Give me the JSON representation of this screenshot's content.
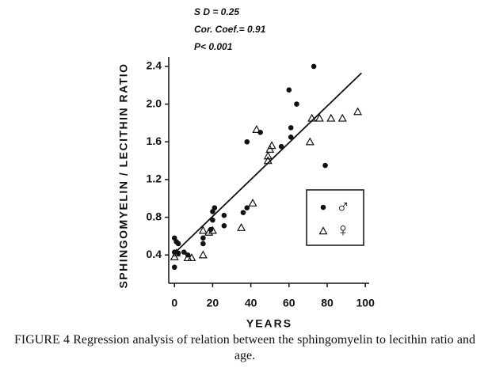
{
  "chart_data": {
    "type": "scatter",
    "annotations": [
      "S D = 0.25",
      "Cor. Coef.= 0.91",
      "P< 0.001"
    ],
    "x_label": "YEARS",
    "y_label": "SPHINGOMYELIN / LECITHIN RATIO",
    "xlim": [
      -3,
      102
    ],
    "ylim": [
      0.1,
      2.5
    ],
    "xticks": [
      0,
      20,
      40,
      60,
      80,
      100
    ],
    "yticks": [
      0.4,
      0.8,
      1.2,
      1.6,
      {
        "value": 2,
        "label": "2.0"
      },
      2.4
    ],
    "legend": "lower right",
    "series": [
      {
        "name": "♂",
        "color": "#111111",
        "marker": "circle",
        "x": [
          0,
          1,
          2,
          0,
          2,
          0,
          5,
          7,
          15,
          15,
          19,
          20,
          20,
          21,
          26,
          26,
          36,
          38,
          38,
          45,
          56,
          60,
          64,
          61,
          61,
          73,
          79
        ],
        "values": [
          0.58,
          0.54,
          0.52,
          0.43,
          0.42,
          0.27,
          0.43,
          0.4,
          0.52,
          0.58,
          0.67,
          0.77,
          0.86,
          0.9,
          0.82,
          0.71,
          0.85,
          0.9,
          1.6,
          1.7,
          1.55,
          2.15,
          2.0,
          1.75,
          1.65,
          2.4,
          1.35
        ]
      },
      {
        "name": "♀",
        "color": "#111111",
        "marker": "triangle",
        "x": [
          0,
          1,
          7,
          9,
          15,
          15,
          18,
          20,
          35,
          41,
          43,
          49,
          49,
          50,
          51,
          71,
          72,
          76,
          82,
          88,
          96
        ],
        "values": [
          0.38,
          0.42,
          0.37,
          0.37,
          0.4,
          0.66,
          0.64,
          0.66,
          0.69,
          0.95,
          1.73,
          1.4,
          1.45,
          1.52,
          1.56,
          1.6,
          1.85,
          1.85,
          1.85,
          1.85,
          1.92
        ]
      }
    ],
    "regression": {
      "x": [
        0,
        98
      ],
      "values": [
        0.42,
        2.33
      ]
    },
    "caption": "FIGURE 4 Regression analysis of relation between the sphingomyelin to lecithin ratio and age."
  }
}
